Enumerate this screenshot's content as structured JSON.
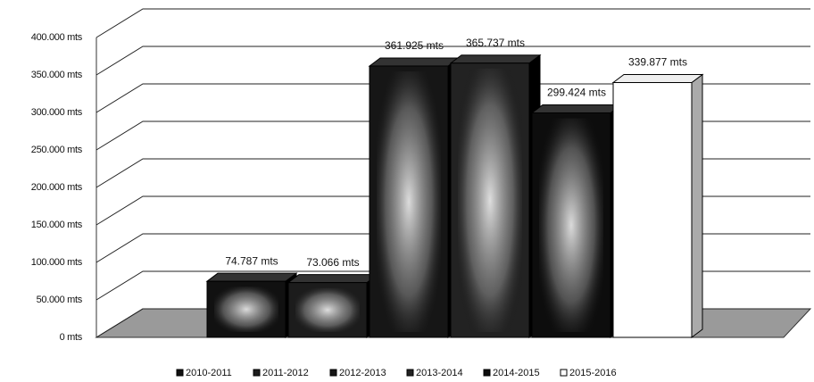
{
  "chart_data": {
    "type": "bar3d",
    "series": [
      {
        "name": "2010-2011",
        "color": "#111111",
        "values": [
          74787
        ],
        "value_labels": [
          "74.787 mts"
        ]
      },
      {
        "name": "2011-2012",
        "color": "#1c1c1c",
        "values": [
          73066
        ],
        "value_labels": [
          "73.066 mts"
        ]
      },
      {
        "name": "2012-2013",
        "color": "#161616",
        "values": [
          361925
        ],
        "value_labels": [
          "361.925 mts"
        ]
      },
      {
        "name": "2013-2014",
        "color": "#222222",
        "values": [
          365737
        ],
        "value_labels": [
          "365.737 mts"
        ]
      },
      {
        "name": "2014-2015",
        "color": "#0d0d0d",
        "values": [
          299424
        ],
        "value_labels": [
          "299.424 mts"
        ]
      },
      {
        "name": "2015-2016",
        "color": "#ffffff",
        "values": [
          339877
        ],
        "value_labels": [
          "339.877 mts"
        ]
      }
    ],
    "ylim": [
      0,
      400000
    ],
    "yticks": [
      {
        "value": 0,
        "label": "0 mts"
      },
      {
        "value": 50000,
        "label": "50.000 mts"
      },
      {
        "value": 100000,
        "label": "100.000 mts"
      },
      {
        "value": 150000,
        "label": "150.000 mts"
      },
      {
        "value": 200000,
        "label": "200.000 mts"
      },
      {
        "value": 250000,
        "label": "250.000 mts"
      },
      {
        "value": 300000,
        "label": "300.000 mts"
      },
      {
        "value": 350000,
        "label": "350.000 mts"
      },
      {
        "value": 400000,
        "label": "400.000 mts"
      }
    ],
    "grid": true,
    "legend": "bottom"
  }
}
